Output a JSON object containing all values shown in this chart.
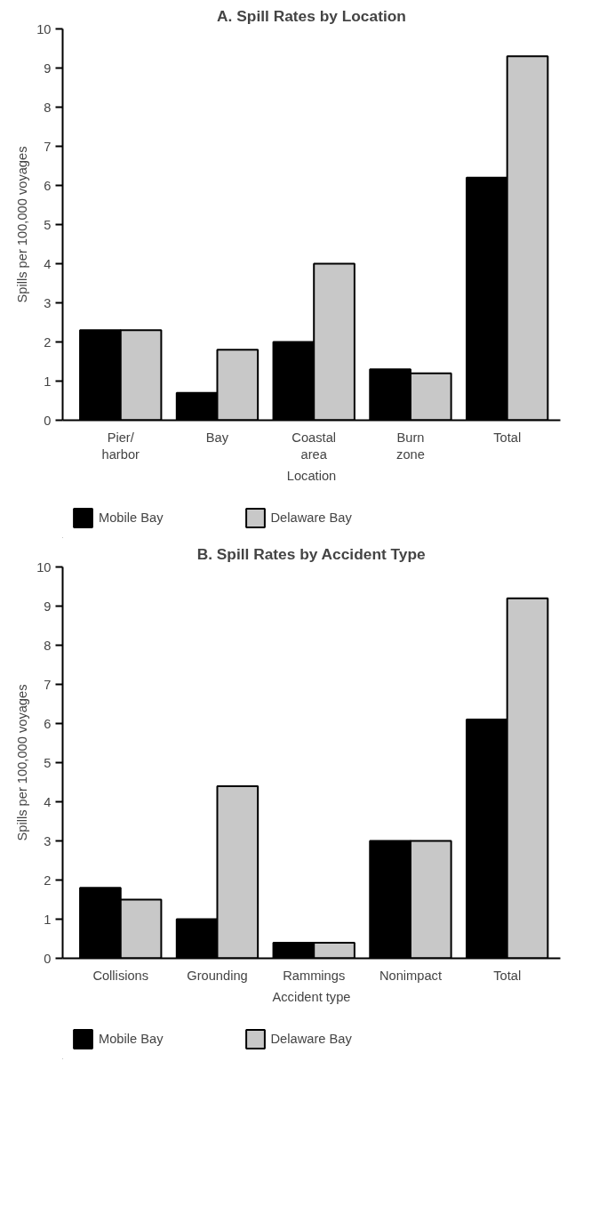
{
  "chart_data": [
    {
      "type": "bar",
      "title": "A. Spill Rates by Location",
      "xlabel": "Location",
      "ylabel": "Spills per 100,000 voyages",
      "categories": [
        "Pier/\nharbor",
        "Bay",
        "Coastal\narea",
        "Burn\nzone",
        "Total"
      ],
      "series": [
        {
          "name": "Mobile Bay",
          "color": "#000000",
          "values": [
            2.3,
            0.7,
            2.0,
            1.3,
            6.2
          ]
        },
        {
          "name": "Delaware Bay",
          "color": "#c8c8c8",
          "values": [
            2.3,
            1.8,
            4.0,
            1.2,
            9.3
          ]
        }
      ],
      "ylim": [
        0,
        10
      ],
      "yticks": [
        0,
        1,
        2,
        3,
        4,
        5,
        6,
        7,
        8,
        9,
        10
      ],
      "grid": false,
      "legend": "bottom"
    },
    {
      "type": "bar",
      "title": "B. Spill Rates by Accident Type",
      "xlabel": "Accident type",
      "ylabel": "Spills per 100,000 voyages",
      "categories": [
        "Collisions",
        "Grounding",
        "Rammings",
        "Nonimpact",
        "Total"
      ],
      "series": [
        {
          "name": "Mobile Bay",
          "color": "#000000",
          "values": [
            1.8,
            1.0,
            0.4,
            3.0,
            6.1
          ]
        },
        {
          "name": "Delaware Bay",
          "color": "#c8c8c8",
          "values": [
            1.5,
            4.4,
            0.4,
            3.0,
            9.2
          ]
        }
      ],
      "ylim": [
        0,
        10
      ],
      "yticks": [
        0,
        1,
        2,
        3,
        4,
        5,
        6,
        7,
        8,
        9,
        10
      ],
      "grid": false,
      "legend": "bottom"
    }
  ]
}
